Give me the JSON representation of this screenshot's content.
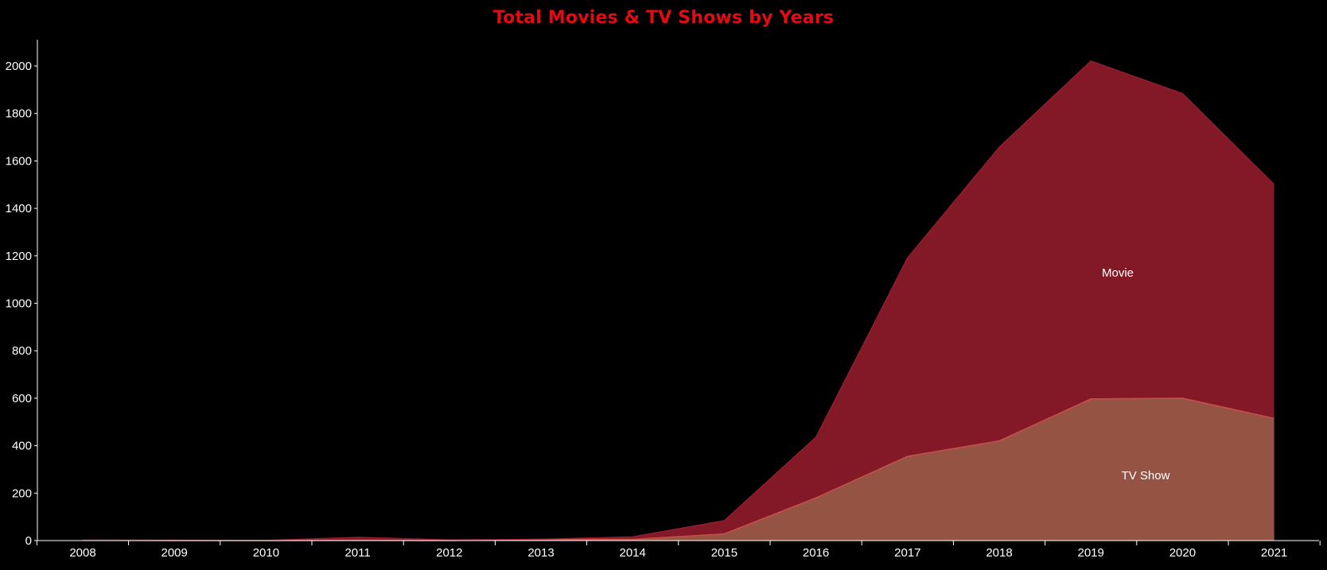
{
  "colors": {
    "background": "#000000",
    "title": "#e50914",
    "movie_fill": "#831926",
    "tvshow_fill": "#955344",
    "tvshow_line": "#c8504a",
    "axis": "#ffffff",
    "text": "#ffffff"
  },
  "chart_data": {
    "type": "area",
    "stacked": true,
    "title": "Total Movies & TV Shows by Years",
    "xlabel": "",
    "ylabel": "",
    "x": [
      "2008",
      "2009",
      "2010",
      "2011",
      "2012",
      "2013",
      "2014",
      "2015",
      "2016",
      "2017",
      "2018",
      "2019",
      "2020",
      "2021"
    ],
    "series": [
      {
        "name": "TV Show",
        "color": "#955344",
        "values": [
          1,
          0,
          0,
          1,
          0,
          5,
          5,
          28,
          180,
          355,
          420,
          597,
          600,
          515
        ]
      },
      {
        "name": "Movie",
        "color": "#831926",
        "values": [
          1,
          2,
          1,
          13,
          3,
          1,
          11,
          56,
          256,
          837,
          1238,
          1424,
          1284,
          986
        ]
      }
    ],
    "ylim": [
      0,
      2100
    ],
    "yticks": [
      0,
      200,
      400,
      600,
      800,
      1000,
      1200,
      1400,
      1600,
      1800,
      2000
    ],
    "grid": false,
    "legend": "none"
  }
}
